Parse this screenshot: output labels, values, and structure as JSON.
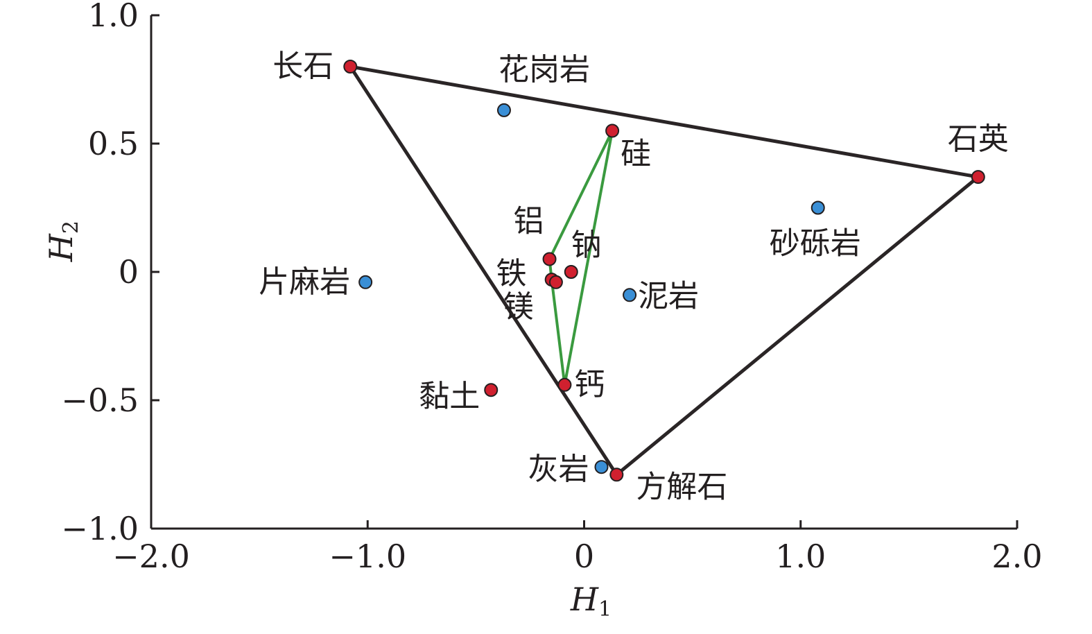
{
  "chart_data": {
    "type": "scatter",
    "xlim": [
      -2.0,
      2.0
    ],
    "ylim": [
      -1.0,
      1.0
    ],
    "x_ticks": [
      {
        "value": -2.0,
        "label": "−2.0"
      },
      {
        "value": -1.0,
        "label": "−1.0"
      },
      {
        "value": 0,
        "label": "0"
      },
      {
        "value": 1.0,
        "label": "1.0"
      },
      {
        "value": 2.0,
        "label": "2.0"
      }
    ],
    "y_ticks": [
      {
        "value": 1.0,
        "label": "1.0"
      },
      {
        "value": 0.5,
        "label": "0.5"
      },
      {
        "value": 0,
        "label": "0"
      },
      {
        "value": -0.5,
        "label": "−0.5"
      },
      {
        "value": -1.0,
        "label": "−1.0"
      }
    ],
    "xlabel": {
      "main": "H",
      "sub": "1"
    },
    "ylabel": {
      "main": "H",
      "sub": "2"
    },
    "grid": false,
    "colors": {
      "mineral": "#d0202f",
      "rock": "#3a8fd6",
      "outline": "#231f20",
      "black_polygon": "#2a2526",
      "green_polygon": "#3a9a3f"
    },
    "minerals": [
      {
        "name": "长石",
        "x": -1.08,
        "y": 0.8
      },
      {
        "name": "石英",
        "x": 1.82,
        "y": 0.37
      },
      {
        "name": "方解石",
        "x": 0.15,
        "y": -0.79
      },
      {
        "name": "硅",
        "x": 0.13,
        "y": 0.55
      },
      {
        "name": "铝",
        "x": -0.16,
        "y": 0.05
      },
      {
        "name": "钠",
        "x": -0.06,
        "y": 0.0
      },
      {
        "name": "铁",
        "x": -0.15,
        "y": -0.03
      },
      {
        "name": "镁",
        "x": -0.13,
        "y": -0.04
      },
      {
        "name": "钙",
        "x": -0.09,
        "y": -0.44
      },
      {
        "name": "黏土",
        "x": -0.43,
        "y": -0.46
      }
    ],
    "rocks": [
      {
        "name": "花岗岩",
        "x": -0.37,
        "y": 0.63
      },
      {
        "name": "片麻岩",
        "x": -1.01,
        "y": -0.04
      },
      {
        "name": "砂砾岩",
        "x": 1.08,
        "y": 0.25
      },
      {
        "name": "泥岩",
        "x": 0.21,
        "y": -0.09
      },
      {
        "name": "灰岩",
        "x": 0.08,
        "y": -0.76
      }
    ],
    "polygons": [
      {
        "color_key": "black_polygon",
        "vertices": [
          "长石",
          "石英",
          "方解石"
        ]
      },
      {
        "color_key": "green_polygon",
        "vertices": [
          "硅",
          "铝",
          "铁",
          "钙"
        ]
      }
    ]
  }
}
